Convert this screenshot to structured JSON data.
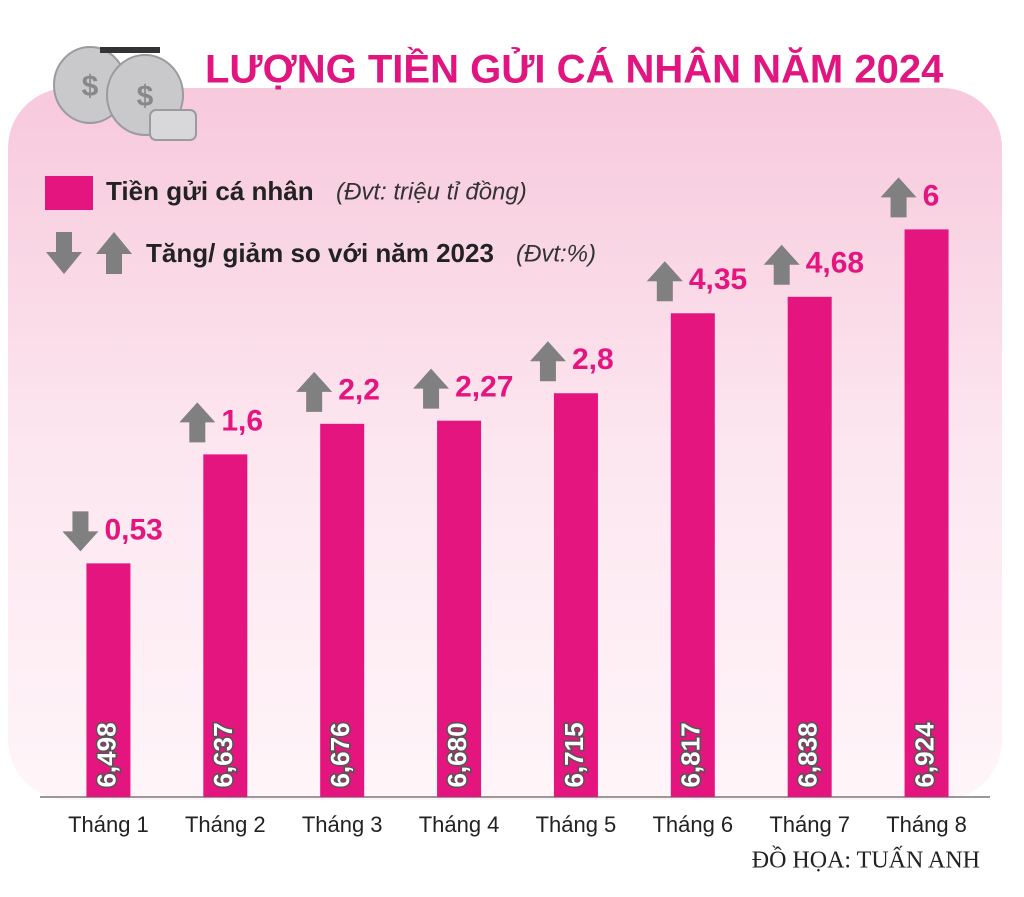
{
  "chart_data": {
    "type": "bar",
    "title": "LƯỢNG TIỀN GỬI CÁ NHÂN NĂM 2024",
    "categories": [
      "Tháng 1",
      "Tháng 2",
      "Tháng 3",
      "Tháng 4",
      "Tháng 5",
      "Tháng 6",
      "Tháng 7",
      "Tháng 8"
    ],
    "series": [
      {
        "name": "Tiền gửi cá nhân",
        "unit": "(Đvt: triệu tỉ đồng)",
        "color": "#e5157f",
        "values": [
          6.498,
          6.637,
          6.676,
          6.68,
          6.715,
          6.817,
          6.838,
          6.924
        ],
        "value_labels": [
          "6,498",
          "6,637",
          "6,676",
          "6,680",
          "6,715",
          "6,817",
          "6,838",
          "6,924"
        ]
      },
      {
        "name": "Tăng/ giảm so với năm 2023",
        "unit": "(Đvt:%)",
        "color": "#808080",
        "values": [
          -0.53,
          1.6,
          2.2,
          2.27,
          2.8,
          4.35,
          4.68,
          6
        ],
        "value_labels": [
          "0,53",
          "1,6",
          "2,2",
          "2,27",
          "2,8",
          "4,35",
          "4,68",
          "6"
        ]
      }
    ],
    "ylim": [
      6.2,
      6.95
    ],
    "credit": "ĐỒ HỌA: TUẤN ANH"
  }
}
